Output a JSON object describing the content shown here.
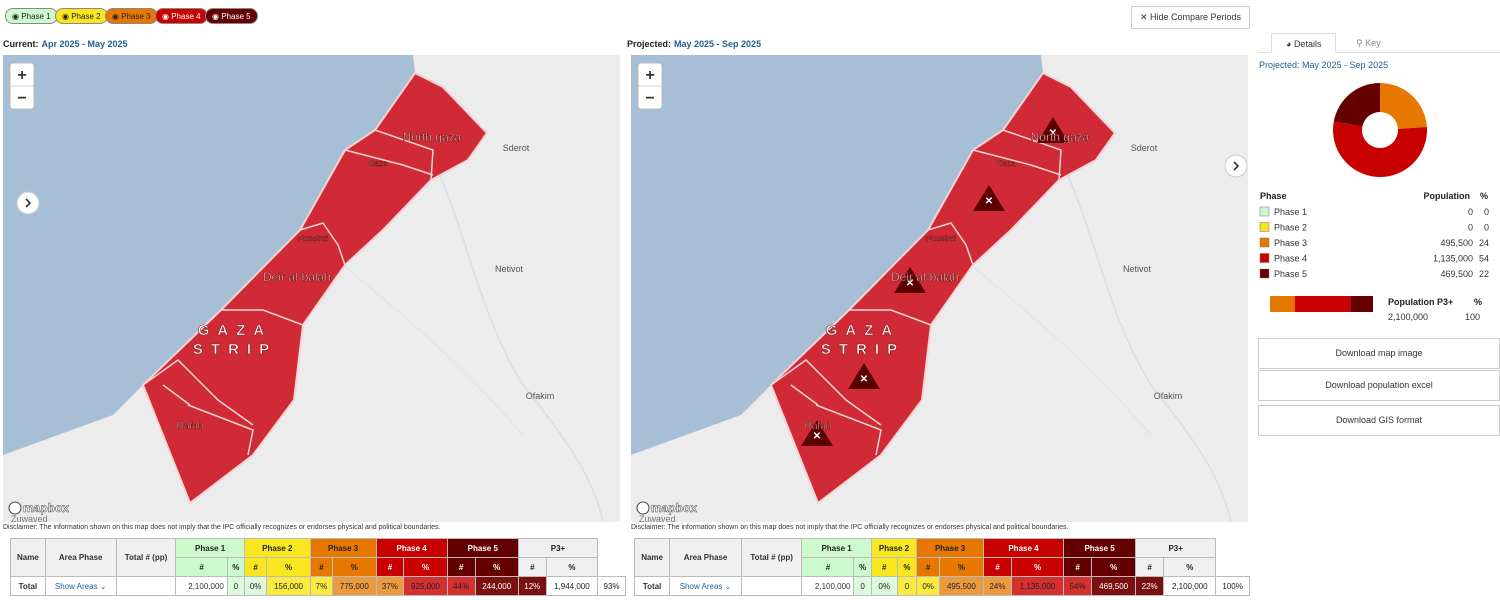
{
  "phase_filters": [
    "Phase 1",
    "Phase 2",
    "Phase 3",
    "Phase 4",
    "Phase 5"
  ],
  "compare_button": "Hide Compare Periods",
  "maps": [
    {
      "period_label": "Current:",
      "period": "Apr 2025 - May 2025",
      "zoom_in": "+",
      "zoom_out": "−",
      "places": [
        "North gaza",
        "Gaza",
        "Nuseirat",
        "Deir al-balah",
        "GAZA",
        "STRIP",
        "Rafah",
        "Sderot",
        "Netivot",
        "Ofakim"
      ],
      "attribution": "mapbox",
      "partial_place": "Zuwayed",
      "disclaimer": "Disclaimer: The information shown on this map does not imply that the IPC officially recognizes or endorses physical and political boundaries."
    },
    {
      "period_label": "Projected:",
      "period": "May 2025 - Sep 2025",
      "zoom_in": "+",
      "zoom_out": "−",
      "places": [
        "North gaza",
        "Gaza",
        "Nuseirat",
        "Deir al-balah",
        "GAZA",
        "STRIP",
        "Rafah",
        "Sderot",
        "Netivot",
        "Ofakim"
      ],
      "attribution": "mapbox",
      "partial_place": "Zuwayed",
      "disclaimer": "Disclaimer: The information shown on this map does not imply that the IPC officially recognizes or endorses physical and political boundaries."
    }
  ],
  "tables": [
    {
      "columns": [
        "Name",
        "Area Phase",
        "Total # (pp)"
      ],
      "groups": [
        "Phase 1",
        "Phase 2",
        "Phase 3",
        "Phase 4",
        "Phase 5",
        "P3+"
      ],
      "sub_headers": [
        "#",
        "%"
      ],
      "row": {
        "name": "Total",
        "link": "Show Areas",
        "area_phase": "",
        "total": "2,100,000",
        "cells": [
          [
            "0",
            "0%"
          ],
          [
            "156,000",
            "7%"
          ],
          [
            "775,000",
            "37%"
          ],
          [
            "925,000",
            "44%"
          ],
          [
            "244,000",
            "12%"
          ],
          [
            "1,944,000",
            "93%"
          ]
        ]
      }
    },
    {
      "columns": [
        "Name",
        "Area Phase",
        "Total # (pp)"
      ],
      "groups": [
        "Phase 1",
        "Phase 2",
        "Phase 3",
        "Phase 4",
        "Phase 5",
        "P3+"
      ],
      "sub_headers": [
        "#",
        "%"
      ],
      "row": {
        "name": "Total",
        "link": "Show Areas",
        "area_phase": "",
        "total": "2,100,000",
        "cells": [
          [
            "0",
            "0%"
          ],
          [
            "0",
            "0%"
          ],
          [
            "495,500",
            "24%"
          ],
          [
            "1,135,000",
            "54%"
          ],
          [
            "469,500",
            "22%"
          ],
          [
            "2,100,000",
            "100%"
          ]
        ]
      }
    }
  ],
  "details": {
    "tabs": [
      "Details",
      "Key"
    ],
    "period": "Projected: May 2025 - Sep 2025",
    "headers": [
      "Phase",
      "Population",
      "%"
    ],
    "rows": [
      {
        "phase": "Phase 1",
        "population": "0",
        "percent": 0,
        "color": "#cdfacd"
      },
      {
        "phase": "Phase 2",
        "population": "0",
        "percent": 0,
        "color": "#fae61e"
      },
      {
        "phase": "Phase 3",
        "population": "495,500",
        "percent": 24,
        "color": "#e67800"
      },
      {
        "phase": "Phase 4",
        "population": "1,135,000",
        "percent": 54,
        "color": "#c80000"
      },
      {
        "phase": "Phase 5",
        "population": "469,500",
        "percent": 22,
        "color": "#640000"
      }
    ],
    "p3": {
      "label": "Population P3+",
      "pct_label": "%",
      "population": "2,100,000",
      "percent": 100
    },
    "downloads": [
      "Download map image",
      "Download population excel",
      "Download GIS format"
    ]
  }
}
